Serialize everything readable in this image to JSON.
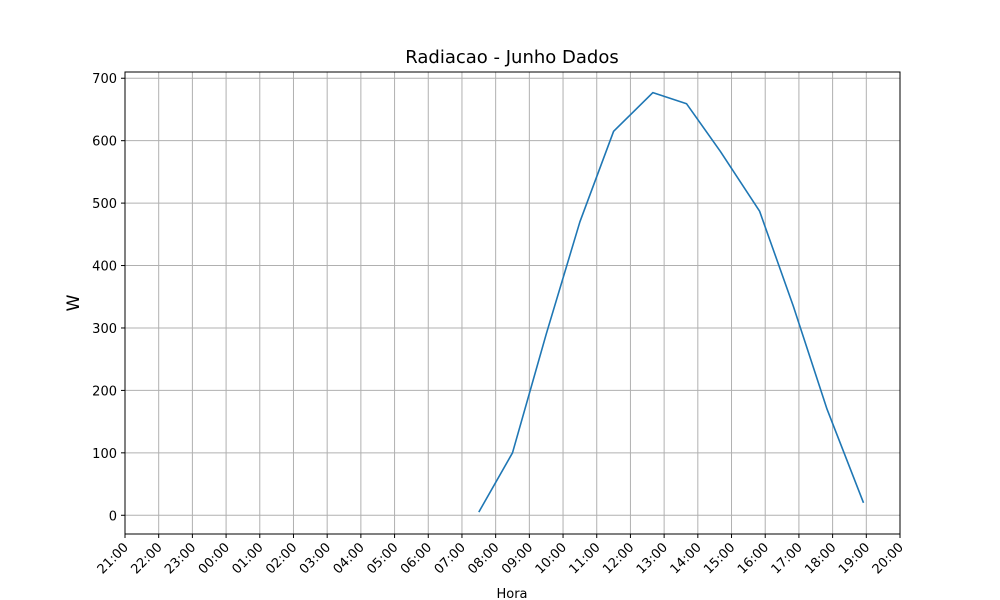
{
  "chart_data": {
    "type": "line",
    "title": "Radiacao - Junho Dados",
    "xlabel": "Hora",
    "ylabel": "W",
    "x_ticks": [
      "21:00",
      "22:00",
      "23:00",
      "00:00",
      "01:00",
      "02:00",
      "03:00",
      "04:00",
      "05:00",
      "06:00",
      "07:00",
      "08:00",
      "09:00",
      "10:00",
      "11:00",
      "12:00",
      "13:00",
      "14:00",
      "15:00",
      "16:00",
      "17:00",
      "18:00",
      "19:00",
      "20:00"
    ],
    "y_ticks": [
      0,
      100,
      200,
      300,
      400,
      500,
      600,
      700
    ],
    "ylim": [
      -30,
      710
    ],
    "grid": true,
    "series": [
      {
        "color": "#1f77b4",
        "x": [
          "07:30",
          "08:30",
          "09:30",
          "10:30",
          "11:30",
          "12:40",
          "13:40",
          "14:40",
          "15:50",
          "16:50",
          "17:50",
          "18:55"
        ],
        "y": [
          5,
          100,
          290,
          470,
          615,
          677,
          659,
          583,
          487,
          335,
          170,
          20
        ]
      }
    ]
  }
}
